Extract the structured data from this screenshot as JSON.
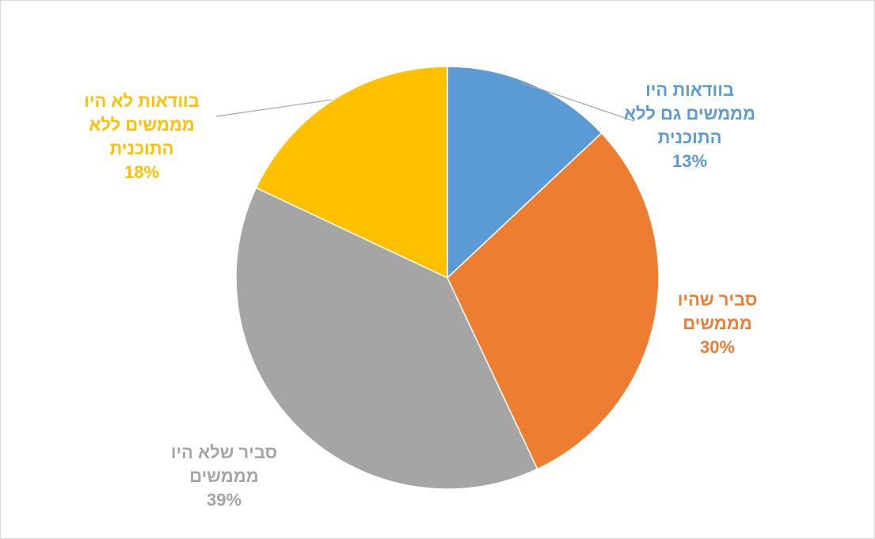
{
  "chart_data": {
    "type": "pie",
    "slices": [
      {
        "label_lines": [
          "בוודאות היו",
          "מממשים גם ללא",
          "התוכנית"
        ],
        "value": 13,
        "value_label": "13%",
        "color": "#5b9bd5"
      },
      {
        "label_lines": [
          "סביר שהיו",
          "מממשים"
        ],
        "value": 30,
        "value_label": "30%",
        "color": "#ed7d31"
      },
      {
        "label_lines": [
          "סביר שלא היו",
          "מממשים"
        ],
        "value": 39,
        "value_label": "39%",
        "color": "#a5a5a5"
      },
      {
        "label_lines": [
          "בוודאות לא היו",
          "מממשים ללא",
          "התוכנית"
        ],
        "value": 18,
        "value_label": "18%",
        "color": "#ffc000"
      }
    ],
    "legend": "none"
  }
}
